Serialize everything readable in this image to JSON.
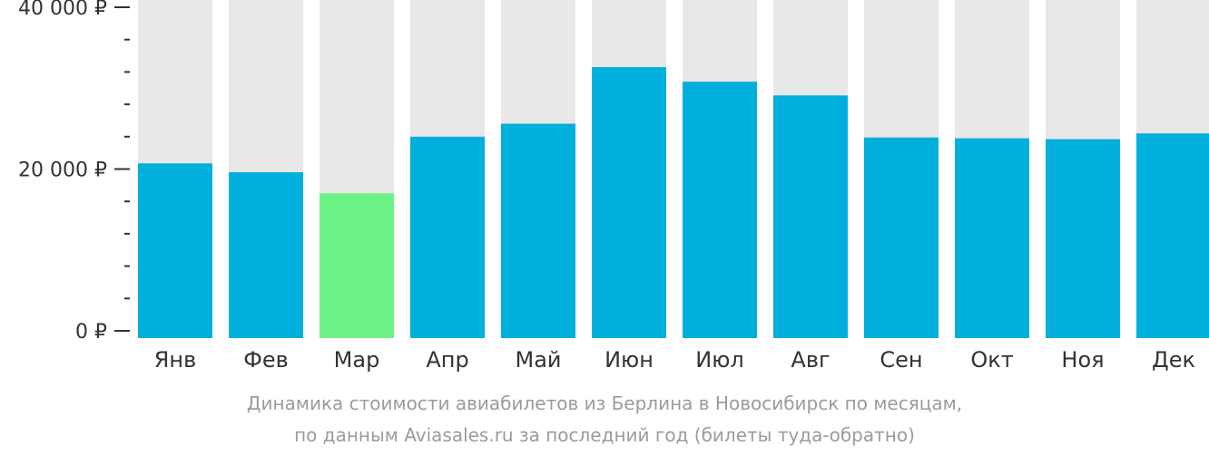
{
  "chart_data": {
    "type": "bar",
    "categories": [
      "Янв",
      "Фев",
      "Мар",
      "Апр",
      "Май",
      "Июн",
      "Июл",
      "Авг",
      "Сен",
      "Окт",
      "Ноя",
      "Дек"
    ],
    "values": [
      20700,
      19600,
      17000,
      24000,
      25600,
      32600,
      30800,
      29100,
      23900,
      23800,
      23700,
      24400
    ],
    "highlight_index": 2,
    "ylim": [
      0,
      40000
    ],
    "yticks": [
      {
        "value": 0,
        "label": "0 ₽"
      },
      {
        "value": 20000,
        "label": "20 000 ₽"
      },
      {
        "value": 40000,
        "label": "40 000 ₽"
      }
    ],
    "minor_tick_step": 4000,
    "colors": {
      "bar": "#00afdc",
      "highlight": "#6cf287",
      "background_bar": "#e8e8e8",
      "axis": "#333333"
    },
    "caption_lines": [
      "Динамика стоимости авиабилетов из Берлина в Новосибирск по месяцам,",
      "по данным Aviasales.ru за последний год (билеты туда-обратно)"
    ]
  }
}
